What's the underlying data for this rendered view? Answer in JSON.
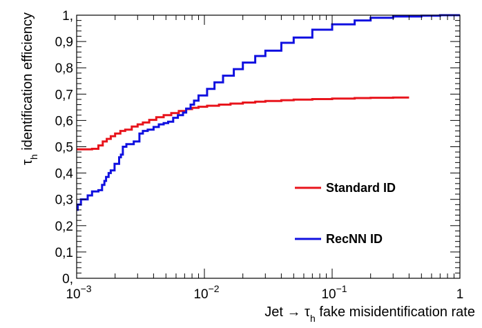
{
  "chart_data": {
    "type": "line",
    "xlabel": {
      "pre": "Jet → τ",
      "sub": "h",
      "post": " fake misidentification rate"
    },
    "ylabel": {
      "pre": "τ",
      "sub": "h",
      "post": " identification efficiency"
    },
    "x_scale": "log",
    "xlim": [
      0.001,
      1
    ],
    "ylim": [
      0,
      1
    ],
    "x_ticks": [
      {
        "value": 0.001,
        "base": "10",
        "exp": "−3"
      },
      {
        "value": 0.01,
        "base": "10",
        "exp": "−2"
      },
      {
        "value": 0.1,
        "base": "10",
        "exp": "−1"
      },
      {
        "value": 1,
        "base": "1",
        "exp": ""
      }
    ],
    "y_ticks": [
      {
        "value": 0,
        "label": "0,"
      },
      {
        "value": 0.1,
        "label": "0,1"
      },
      {
        "value": 0.2,
        "label": "0,2"
      },
      {
        "value": 0.3,
        "label": "0,3"
      },
      {
        "value": 0.4,
        "label": "0,4"
      },
      {
        "value": 0.5,
        "label": "0,5"
      },
      {
        "value": 0.6,
        "label": "0,6"
      },
      {
        "value": 0.7,
        "label": "0,7"
      },
      {
        "value": 0.8,
        "label": "0,8"
      },
      {
        "value": 0.9,
        "label": "0,9"
      },
      {
        "value": 1,
        "label": "1,"
      }
    ],
    "grid": false,
    "legend_position": "center-right",
    "series": [
      {
        "name": "Standard ID",
        "color": "#e8141c",
        "step": true,
        "x": [
          0.001,
          0.00115,
          0.00132,
          0.00148,
          0.0016,
          0.00172,
          0.00185,
          0.002,
          0.0022,
          0.0024,
          0.0027,
          0.003,
          0.0033,
          0.0037,
          0.0042,
          0.0048,
          0.0055,
          0.0063,
          0.0072,
          0.008,
          0.009,
          0.0105,
          0.013,
          0.016,
          0.02,
          0.025,
          0.03,
          0.04,
          0.05,
          0.07,
          0.1,
          0.15,
          0.2,
          0.3,
          0.4
        ],
        "y": [
          0.49,
          0.49,
          0.492,
          0.505,
          0.52,
          0.53,
          0.54,
          0.55,
          0.56,
          0.565,
          0.577,
          0.585,
          0.592,
          0.602,
          0.612,
          0.62,
          0.628,
          0.636,
          0.643,
          0.648,
          0.652,
          0.656,
          0.66,
          0.664,
          0.668,
          0.671,
          0.674,
          0.677,
          0.679,
          0.681,
          0.683,
          0.685,
          0.686,
          0.687,
          0.687
        ]
      },
      {
        "name": "RecNN ID",
        "color": "#1010e0",
        "step": true,
        "x": [
          0.001,
          0.00102,
          0.00108,
          0.00115,
          0.00122,
          0.00132,
          0.00148,
          0.00158,
          0.00165,
          0.0017,
          0.00178,
          0.00185,
          0.00198,
          0.00215,
          0.00222,
          0.0023,
          0.00245,
          0.0028,
          0.0031,
          0.0033,
          0.0036,
          0.004,
          0.0044,
          0.0048,
          0.0052,
          0.0057,
          0.0062,
          0.0068,
          0.0072,
          0.0078,
          0.0083,
          0.009,
          0.0105,
          0.012,
          0.014,
          0.017,
          0.02,
          0.025,
          0.03,
          0.04,
          0.05,
          0.07,
          0.1,
          0.15,
          0.2,
          0.3,
          0.5,
          0.7,
          1.0
        ],
        "y": [
          0.26,
          0.28,
          0.3,
          0.3,
          0.315,
          0.33,
          0.335,
          0.355,
          0.37,
          0.385,
          0.4,
          0.41,
          0.435,
          0.46,
          0.47,
          0.5,
          0.51,
          0.52,
          0.55,
          0.56,
          0.565,
          0.575,
          0.585,
          0.59,
          0.595,
          0.61,
          0.62,
          0.63,
          0.645,
          0.66,
          0.675,
          0.695,
          0.72,
          0.745,
          0.77,
          0.795,
          0.82,
          0.845,
          0.865,
          0.895,
          0.915,
          0.945,
          0.965,
          0.98,
          0.99,
          0.995,
          0.998,
          1.0,
          1.0
        ]
      }
    ]
  }
}
